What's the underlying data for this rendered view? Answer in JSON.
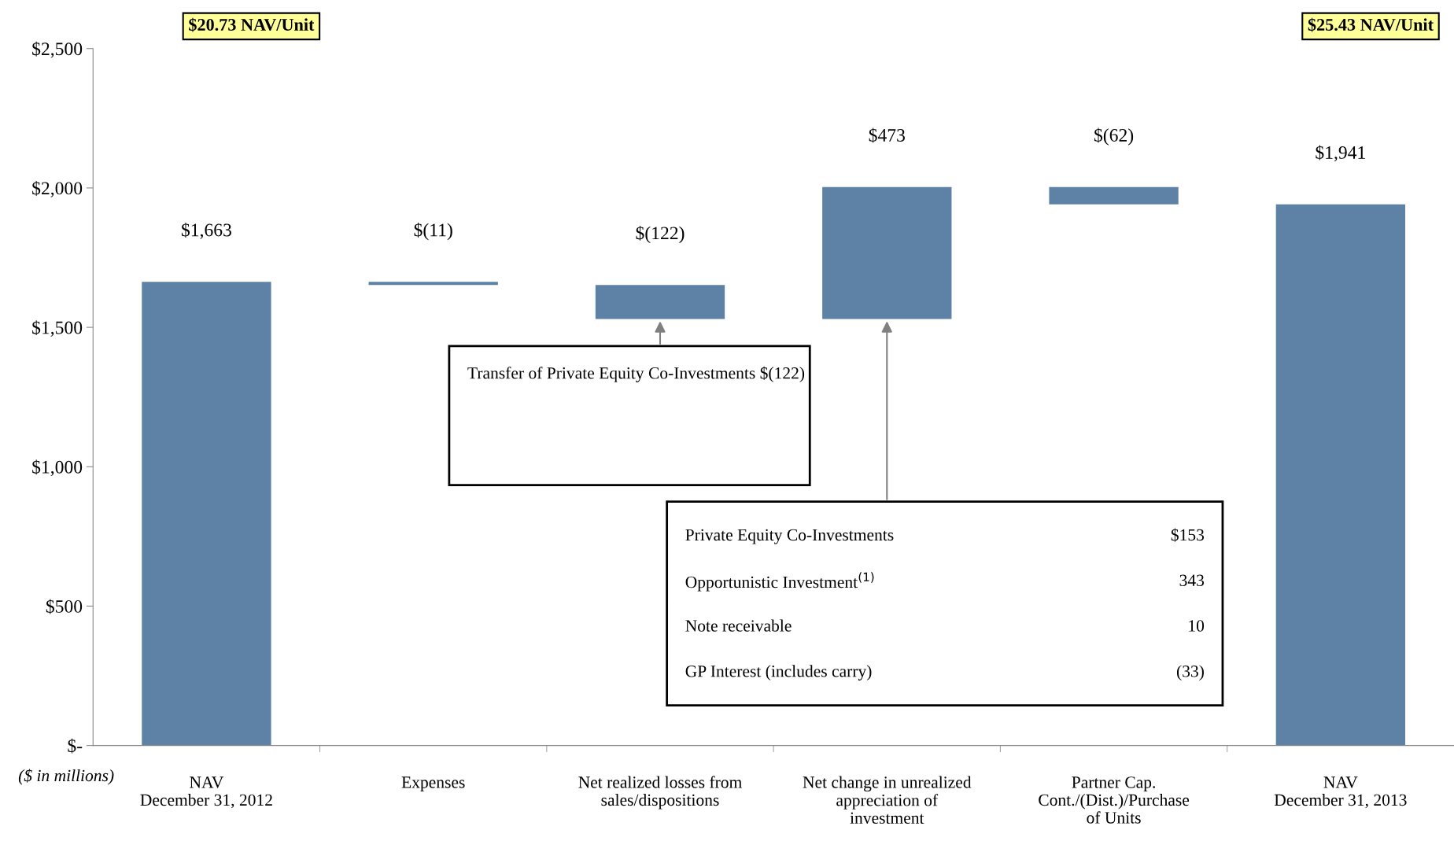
{
  "chart_data": {
    "type": "bar",
    "categories": [
      "NAV\nDecember 31, 2012",
      "Expenses",
      "Net realized losses from\nsales/dispositions",
      "Net change in unrealized\nappreciation of\ninvestment",
      "Partner Cap.\nCont./(Dist.)/Purchase\nof Units",
      "NAV\nDecember 31, 2013"
    ],
    "values": [
      1663,
      -11,
      -122,
      473,
      -62,
      1941
    ],
    "base": [
      0,
      1663,
      1652,
      1530,
      2003,
      0
    ],
    "color": "#5e82a5",
    "value_labels": [
      "$1,663",
      "$(11)",
      "$(122)",
      "$473",
      "$(62)",
      "$1,941"
    ],
    "ylim": [
      0,
      2500
    ],
    "yticks": [
      {
        "value": 0,
        "label": "$-"
      },
      {
        "value": 500,
        "label": "$500"
      },
      {
        "value": 1000,
        "label": "$1,000"
      },
      {
        "value": 1500,
        "label": "$1,500"
      },
      {
        "value": 2000,
        "label": "$2,000"
      },
      {
        "value": 2500,
        "label": "$2,500"
      }
    ],
    "grid": false,
    "legend": false,
    "annotations": [
      "$20.73 NAV/Unit",
      "$25.43 NAV/Unit",
      "($ in millions)",
      "Transfer of Private Equity Co-Investments $(122)",
      "Private Equity Co-Investments",
      "$153",
      "Opportunistic Investment$^{(1)}$",
      "343",
      "Note receivable",
      "10",
      "GP Interest (includes carry)",
      "(33)"
    ]
  }
}
